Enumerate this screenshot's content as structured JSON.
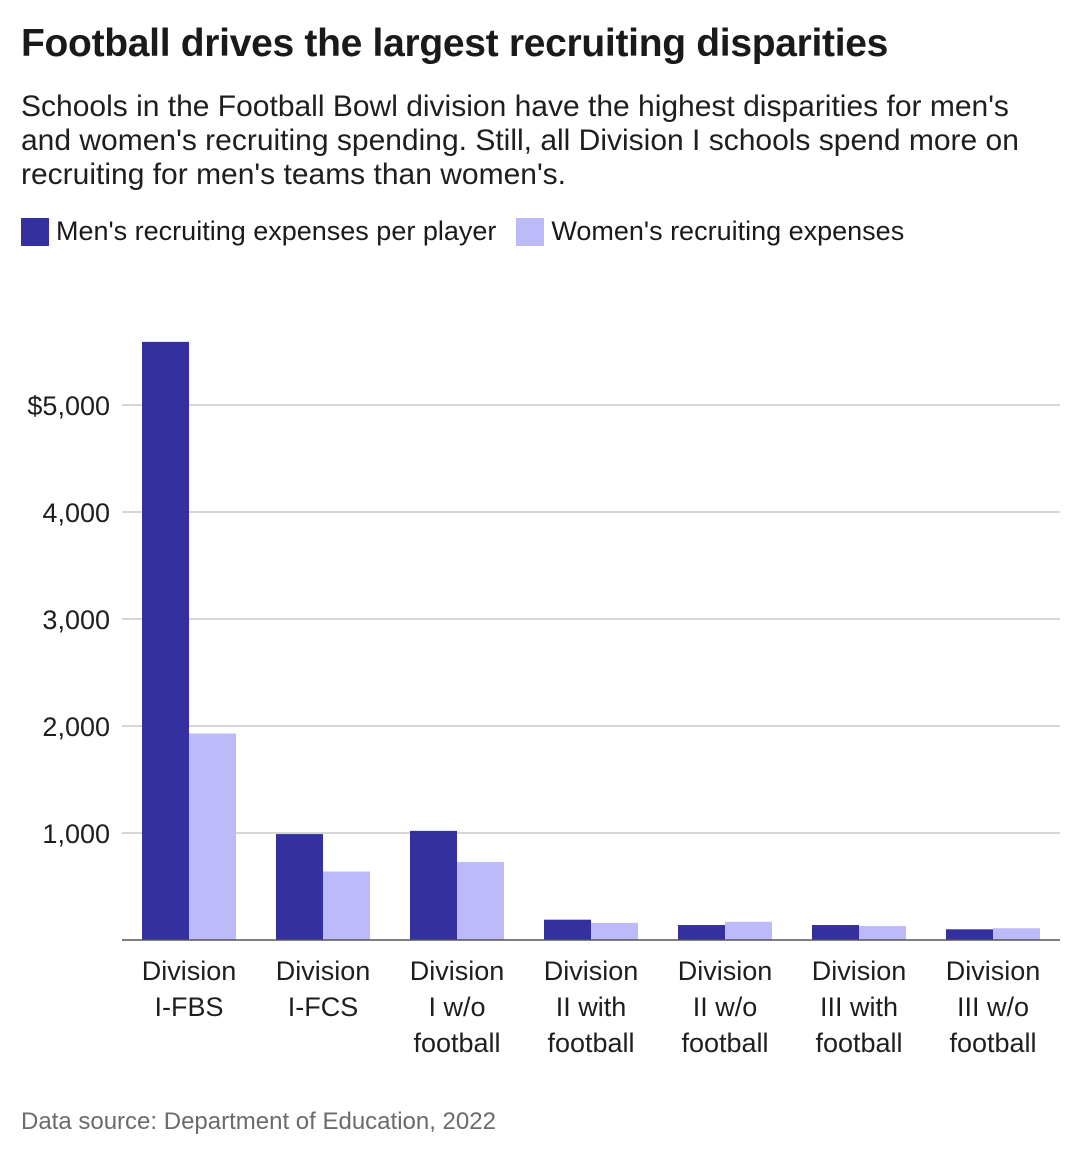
{
  "header": {
    "title": "Football drives the largest recruiting disparities",
    "subtitle": "Schools in the Football Bowl division have the highest disparities for men's and women's recruiting spending. Still, all Division I schools spend more on recruiting for men's teams than women's."
  },
  "footer": {
    "source": "Data source: Department of Education, 2022"
  },
  "colors": {
    "men": "#3430a0",
    "women": "#bcbaf9",
    "grid": "#bdbdbd",
    "axis": "#555555"
  },
  "chart_data": {
    "type": "bar",
    "categories": [
      [
        "Division",
        "I-FBS"
      ],
      [
        "Division",
        "I-FCS"
      ],
      [
        "Division",
        "I w/o",
        "football"
      ],
      [
        "Division",
        "II with",
        "football"
      ],
      [
        "Division",
        "II w/o",
        "football"
      ],
      [
        "Division",
        "III with",
        "football"
      ],
      [
        "Division",
        "III w/o",
        "football"
      ]
    ],
    "series": [
      {
        "name": "Men's recruiting expenses per player",
        "color": "#3430a0",
        "values": [
          5590,
          990,
          1020,
          190,
          140,
          140,
          100
        ]
      },
      {
        "name": "Women's recruiting expenses",
        "color": "#bcbaf9",
        "values": [
          1930,
          640,
          730,
          160,
          170,
          130,
          110
        ]
      }
    ],
    "yticks": [
      1000,
      2000,
      3000,
      4000,
      5000
    ],
    "ytick_labels": [
      "1,000",
      "2,000",
      "3,000",
      "4,000",
      "$5,000"
    ],
    "ylim": [
      0,
      5600
    ],
    "xlabel": "",
    "ylabel": "",
    "grid": true,
    "legend": "top-left"
  }
}
